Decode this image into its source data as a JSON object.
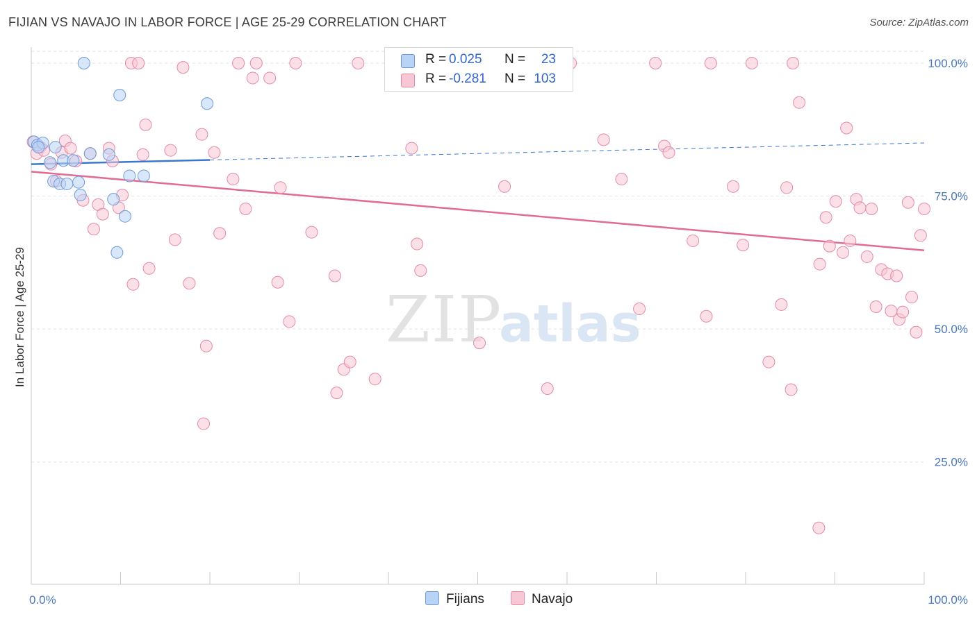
{
  "title": "FIJIAN VS NAVAJO IN LABOR FORCE | AGE 25-29 CORRELATION CHART",
  "source": "Source: ZipAtlas.com",
  "watermark": {
    "zip": "ZIP",
    "atlas": "atlas"
  },
  "colors": {
    "fijians_fill": "#b9d3f5",
    "fijians_stroke": "#6f9ad6",
    "fijians_line": "#3a78d0",
    "navajo_fill": "#f8c7d6",
    "navajo_stroke": "#e48aa6",
    "navajo_line": "#e06b95",
    "tick_label": "#4a78c2",
    "grid": "#e3e3e3"
  },
  "legend": {
    "rows": [
      {
        "r_label": "R =",
        "r_value": "0.025",
        "n_label": "N =",
        "n_value": "23"
      },
      {
        "r_label": "R =",
        "r_value": "-0.281",
        "n_label": "N =",
        "n_value": "103"
      }
    ]
  },
  "bottom_legend": {
    "fijians": "Fijians",
    "navajo": "Navajo"
  },
  "chart_data": {
    "type": "scatter",
    "title": "FIJIAN VS NAVAJO IN LABOR FORCE | AGE 25-29 CORRELATION CHART",
    "xlabel": "",
    "ylabel": "In Labor Force | Age 25-29",
    "xlim": [
      0,
      100
    ],
    "ylim": [
      2,
      103
    ],
    "x_tick_labels": [
      "0.0%",
      "100.0%"
    ],
    "y_ticks": [
      25,
      50,
      75,
      100
    ],
    "y_tick_labels": [
      "25.0%",
      "50.0%",
      "75.0%",
      "100.0%"
    ],
    "grid": true,
    "series": [
      {
        "name": "Fijians",
        "R": 0.025,
        "N": 23,
        "trend": {
          "x": [
            0,
            20
          ],
          "y": [
            81.0,
            81.8
          ]
        },
        "trend_extension": {
          "x": [
            20,
            100
          ],
          "y": [
            81.8,
            85.0
          ]
        },
        "points": [
          [
            0.3,
            85.2
          ],
          [
            0.7,
            84.6
          ],
          [
            1.3,
            85.0
          ],
          [
            0.8,
            84.2
          ],
          [
            2.1,
            81.3
          ],
          [
            2.7,
            84.2
          ],
          [
            2.5,
            77.8
          ],
          [
            3.6,
            81.7
          ],
          [
            3.2,
            77.3
          ],
          [
            4.0,
            77.3
          ],
          [
            4.7,
            81.7
          ],
          [
            5.3,
            77.6
          ],
          [
            5.5,
            75.2
          ],
          [
            6.6,
            83.0
          ],
          [
            5.9,
            100.0
          ],
          [
            8.7,
            82.8
          ],
          [
            9.2,
            74.4
          ],
          [
            9.9,
            94.0
          ],
          [
            10.5,
            71.2
          ],
          [
            11.0,
            78.8
          ],
          [
            9.6,
            64.4
          ],
          [
            12.6,
            78.8
          ],
          [
            19.7,
            92.4
          ]
        ]
      },
      {
        "name": "Navajo",
        "R": -0.281,
        "N": 103,
        "trend": {
          "x": [
            0,
            100
          ],
          "y": [
            79.6,
            64.8
          ]
        },
        "points": [
          [
            0.2,
            85.2
          ],
          [
            0.6,
            83.0
          ],
          [
            1.0,
            84.2
          ],
          [
            1.4,
            83.6
          ],
          [
            2.2,
            81.0
          ],
          [
            2.8,
            77.8
          ],
          [
            3.4,
            83.2
          ],
          [
            3.8,
            85.4
          ],
          [
            4.4,
            84.0
          ],
          [
            5.0,
            81.6
          ],
          [
            5.8,
            74.2
          ],
          [
            6.6,
            83.0
          ],
          [
            7.0,
            68.8
          ],
          [
            7.5,
            73.4
          ],
          [
            8.0,
            71.6
          ],
          [
            8.7,
            84.0
          ],
          [
            9.1,
            81.6
          ],
          [
            9.8,
            72.8
          ],
          [
            10.2,
            75.2
          ],
          [
            11.2,
            100.0
          ],
          [
            11.4,
            58.4
          ],
          [
            12.0,
            100.0
          ],
          [
            12.5,
            82.8
          ],
          [
            12.8,
            88.4
          ],
          [
            13.2,
            61.4
          ],
          [
            15.6,
            83.6
          ],
          [
            16.1,
            66.8
          ],
          [
            17.0,
            99.2
          ],
          [
            17.7,
            58.6
          ],
          [
            19.1,
            86.6
          ],
          [
            19.6,
            46.8
          ],
          [
            20.5,
            83.2
          ],
          [
            21.1,
            68.0
          ],
          [
            19.3,
            32.2
          ],
          [
            22.6,
            78.2
          ],
          [
            23.2,
            100.0
          ],
          [
            24.0,
            72.6
          ],
          [
            24.8,
            97.2
          ],
          [
            25.2,
            100.0
          ],
          [
            26.7,
            97.2
          ],
          [
            27.6,
            58.8
          ],
          [
            27.9,
            76.6
          ],
          [
            28.9,
            51.4
          ],
          [
            29.6,
            100.0
          ],
          [
            31.4,
            68.2
          ],
          [
            34.0,
            60.0
          ],
          [
            35.0,
            42.4
          ],
          [
            34.2,
            38.0
          ],
          [
            35.7,
            43.8
          ],
          [
            36.6,
            100.0
          ],
          [
            38.5,
            40.6
          ],
          [
            42.6,
            84.0
          ],
          [
            43.2,
            66.0
          ],
          [
            43.6,
            61.0
          ],
          [
            46.8,
            100.0
          ],
          [
            49.1,
            100.0
          ],
          [
            50.2,
            47.4
          ],
          [
            53.0,
            76.8
          ],
          [
            55.1,
            100.0
          ],
          [
            57.8,
            38.8
          ],
          [
            60.4,
            100.0
          ],
          [
            64.1,
            85.6
          ],
          [
            66.1,
            78.2
          ],
          [
            68.1,
            53.8
          ],
          [
            69.9,
            100.0
          ],
          [
            70.9,
            84.4
          ],
          [
            71.4,
            83.2
          ],
          [
            74.1,
            66.6
          ],
          [
            75.6,
            52.4
          ],
          [
            76.1,
            100.0
          ],
          [
            78.6,
            76.8
          ],
          [
            79.7,
            65.8
          ],
          [
            80.7,
            100.0
          ],
          [
            82.6,
            43.8
          ],
          [
            84.0,
            54.6
          ],
          [
            85.3,
            100.0
          ],
          [
            84.6,
            76.6
          ],
          [
            85.1,
            38.6
          ],
          [
            86.0,
            92.6
          ],
          [
            88.3,
            62.2
          ],
          [
            89.0,
            71.0
          ],
          [
            89.4,
            65.6
          ],
          [
            90.1,
            74.0
          ],
          [
            90.9,
            64.4
          ],
          [
            91.3,
            87.8
          ],
          [
            91.7,
            66.6
          ],
          [
            92.4,
            74.4
          ],
          [
            92.8,
            72.8
          ],
          [
            93.6,
            63.6
          ],
          [
            94.1,
            72.6
          ],
          [
            94.6,
            54.2
          ],
          [
            95.2,
            61.2
          ],
          [
            95.9,
            60.4
          ],
          [
            96.3,
            53.4
          ],
          [
            96.9,
            60.0
          ],
          [
            97.2,
            51.8
          ],
          [
            97.6,
            53.2
          ],
          [
            98.2,
            73.8
          ],
          [
            98.6,
            56.0
          ],
          [
            99.1,
            49.4
          ],
          [
            99.6,
            67.6
          ],
          [
            100.0,
            72.6
          ],
          [
            88.2,
            12.6
          ]
        ]
      }
    ]
  }
}
